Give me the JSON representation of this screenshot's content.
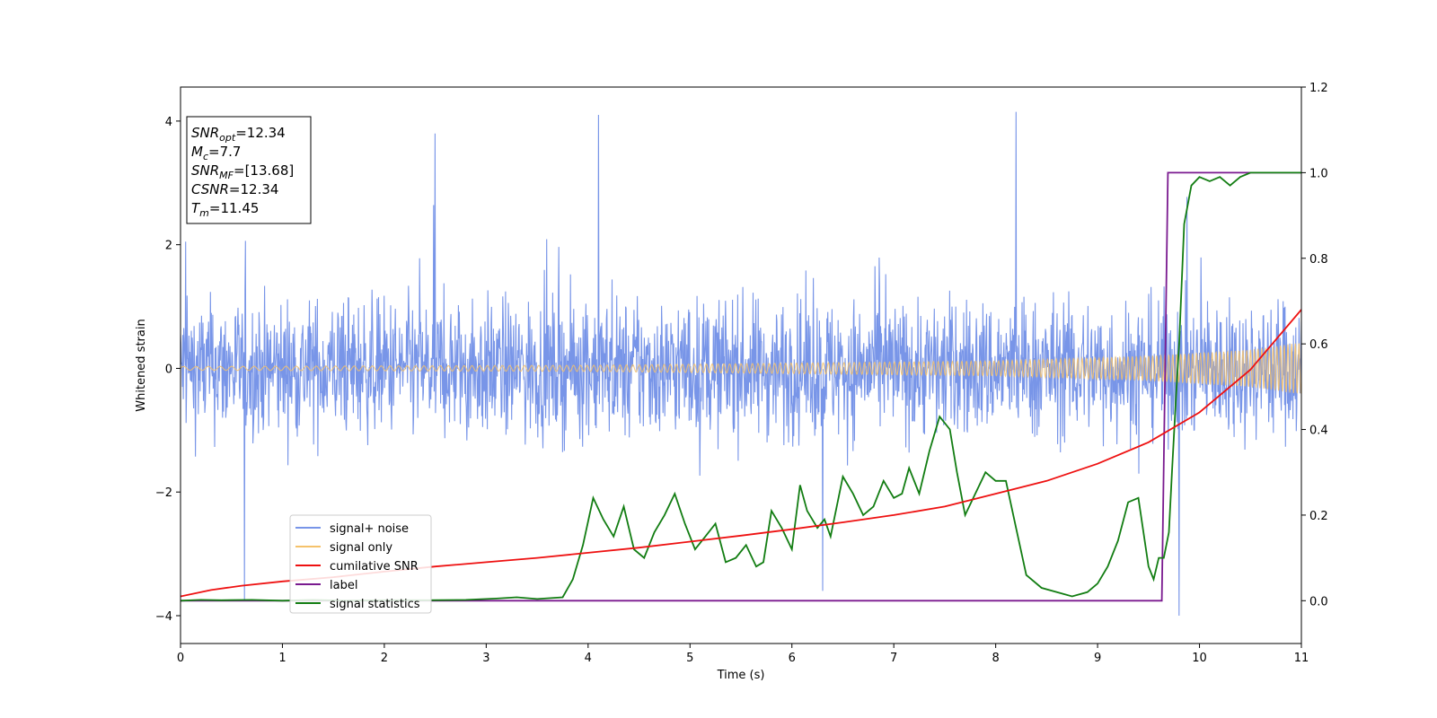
{
  "chart_data": {
    "type": "line",
    "xlabel": "Time (s)",
    "ylabel": "Whitened strain",
    "y2label": "",
    "xlim": [
      0,
      11
    ],
    "ylim": [
      -4.45,
      4.55
    ],
    "y2lim": [
      -0.1,
      1.2
    ],
    "x_ticks": [
      "0",
      "1",
      "2",
      "3",
      "4",
      "5",
      "6",
      "7",
      "8",
      "9",
      "10",
      "11"
    ],
    "y_ticks": [
      "−4",
      "−2",
      "0",
      "2",
      "4"
    ],
    "y2_ticks": [
      "0.0",
      "0.2",
      "0.4",
      "0.6",
      "0.8",
      "1.0",
      "1.2"
    ],
    "grid": false,
    "legend_placement": "lower-left",
    "annotation": {
      "lines": [
        {
          "var": "SNR",
          "sub": "opt",
          "rest": "=12.34"
        },
        {
          "var": "M",
          "sub": "c",
          "rest": "=7.7"
        },
        {
          "var": "SNR",
          "sub": "MF",
          "rest": "=[13.68]"
        },
        {
          "var": "CSNR",
          "sub": "",
          "rest": "=12.34"
        },
        {
          "var": "T",
          "sub": "m",
          "rest": "=11.45"
        }
      ]
    },
    "series": [
      {
        "name": "signal+ noise",
        "axis": "left",
        "color": "#7895e8",
        "description": "dense noisy trace, roughly within -2 to 2.5 with spikes to about 4.1 / -3.9",
        "peak_points": [
          [
            0.05,
            2.05
          ],
          [
            0.63,
            -3.75
          ],
          [
            2.5,
            3.8
          ],
          [
            4.1,
            4.1
          ],
          [
            6.3,
            -3.6
          ],
          [
            8.2,
            4.15
          ],
          [
            9.8,
            -4.0
          ]
        ]
      },
      {
        "name": "signal only",
        "axis": "left",
        "color": "#f5c26b",
        "description": "chirp whose amplitude grows from about 0.03 to 0.42 with increasing frequency",
        "envelope": [
          [
            0,
            0.03
          ],
          [
            4,
            0.05
          ],
          [
            8,
            0.12
          ],
          [
            9.5,
            0.2
          ],
          [
            10.5,
            0.3
          ],
          [
            11,
            0.42
          ]
        ]
      },
      {
        "name": "cumilative SNR",
        "axis": "right",
        "color": "#ee1111",
        "x": [
          0,
          0.3,
          0.6,
          1,
          1.5,
          2,
          2.5,
          3,
          3.5,
          4,
          4.5,
          5,
          5.5,
          6,
          6.5,
          7,
          7.5,
          8,
          8.5,
          9,
          9.5,
          10,
          10.5,
          11
        ],
        "y": [
          0.01,
          0.025,
          0.035,
          0.045,
          0.055,
          0.068,
          0.08,
          0.09,
          0.1,
          0.112,
          0.124,
          0.138,
          0.152,
          0.167,
          0.183,
          0.2,
          0.22,
          0.25,
          0.28,
          0.32,
          0.37,
          0.44,
          0.54,
          0.68
        ]
      },
      {
        "name": "label",
        "axis": "right",
        "color": "#7a1a8f",
        "x": [
          0,
          9.63,
          9.69,
          11
        ],
        "y": [
          0.0,
          0.0,
          1.0,
          1.0
        ]
      },
      {
        "name": "signal statistics",
        "axis": "right",
        "color": "#127d12",
        "x": [
          0,
          0.2,
          0.4,
          0.7,
          1.0,
          1.3,
          1.6,
          2.0,
          2.4,
          2.8,
          3.1,
          3.3,
          3.5,
          3.75,
          3.85,
          3.95,
          4.05,
          4.15,
          4.25,
          4.35,
          4.45,
          4.55,
          4.65,
          4.75,
          4.85,
          4.95,
          5.05,
          5.15,
          5.25,
          5.35,
          5.45,
          5.55,
          5.65,
          5.72,
          5.8,
          5.9,
          6.0,
          6.08,
          6.15,
          6.25,
          6.32,
          6.38,
          6.5,
          6.6,
          6.7,
          6.8,
          6.9,
          7.0,
          7.08,
          7.15,
          7.25,
          7.35,
          7.45,
          7.55,
          7.62,
          7.7,
          7.8,
          7.9,
          8.0,
          8.1,
          8.2,
          8.3,
          8.45,
          8.6,
          8.75,
          8.9,
          9.0,
          9.1,
          9.2,
          9.3,
          9.4,
          9.5,
          9.55,
          9.6,
          9.65,
          9.7,
          9.73,
          9.77,
          9.8,
          9.85,
          9.92,
          10.0,
          10.1,
          10.2,
          10.3,
          10.4,
          10.5,
          10.6,
          10.7,
          10.85,
          11.0
        ],
        "y": [
          0.0,
          0.002,
          0.001,
          0.002,
          0.0,
          0.002,
          0.0,
          0.001,
          0.001,
          0.002,
          0.005,
          0.008,
          0.004,
          0.008,
          0.05,
          0.13,
          0.24,
          0.19,
          0.15,
          0.22,
          0.12,
          0.1,
          0.16,
          0.2,
          0.25,
          0.18,
          0.12,
          0.15,
          0.18,
          0.09,
          0.1,
          0.13,
          0.08,
          0.09,
          0.21,
          0.17,
          0.12,
          0.27,
          0.21,
          0.17,
          0.19,
          0.15,
          0.29,
          0.25,
          0.2,
          0.22,
          0.28,
          0.24,
          0.25,
          0.31,
          0.25,
          0.35,
          0.43,
          0.4,
          0.3,
          0.2,
          0.25,
          0.3,
          0.28,
          0.28,
          0.17,
          0.06,
          0.03,
          0.02,
          0.01,
          0.02,
          0.04,
          0.08,
          0.14,
          0.23,
          0.24,
          0.08,
          0.05,
          0.1,
          0.1,
          0.16,
          0.3,
          0.48,
          0.6,
          0.88,
          0.97,
          0.99,
          0.98,
          0.99,
          0.97,
          0.99,
          1.0,
          1.0,
          1.0,
          1.0,
          1.0
        ]
      }
    ]
  }
}
